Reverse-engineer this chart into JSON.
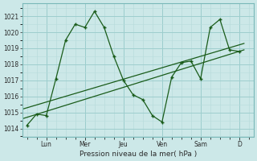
{
  "xlabel": "Pression niveau de la mer( hPa )",
  "bg_color": "#cce8e8",
  "grid_color_major": "#9ecece",
  "grid_color_minor": "#b8dcdc",
  "line_color": "#1a5c1a",
  "ylim": [
    1013.5,
    1021.8
  ],
  "yticks": [
    1014,
    1015,
    1016,
    1017,
    1018,
    1019,
    1020,
    1021
  ],
  "x_day_labels": [
    "Lun",
    "Mer",
    "Jeu",
    "Ven",
    "Sam",
    "D"
  ],
  "x_day_positions": [
    2.0,
    6.0,
    10.0,
    14.0,
    18.0,
    22.0
  ],
  "xlim": [
    -0.5,
    23.5
  ],
  "zigzag_x": [
    0,
    1,
    2,
    3,
    4,
    5,
    6,
    7,
    8,
    9,
    10,
    11,
    12,
    13,
    14,
    15,
    16,
    17,
    18,
    19,
    20,
    21,
    22
  ],
  "zigzag_y": [
    1014.2,
    1014.9,
    1014.8,
    1017.1,
    1019.5,
    1020.5,
    1020.3,
    1021.3,
    1020.3,
    1018.5,
    1017.0,
    1016.1,
    1015.8,
    1014.8,
    1014.4,
    1017.2,
    1018.1,
    1018.2,
    1017.1,
    1020.3,
    1020.8,
    1018.9,
    1018.8
  ],
  "trend1_x": [
    -0.5,
    22.5
  ],
  "trend1_y": [
    1014.6,
    1018.9
  ],
  "trend2_x": [
    -0.5,
    22.5
  ],
  "trend2_y": [
    1015.2,
    1019.3
  ],
  "figsize": [
    3.2,
    2.0
  ],
  "dpi": 100
}
